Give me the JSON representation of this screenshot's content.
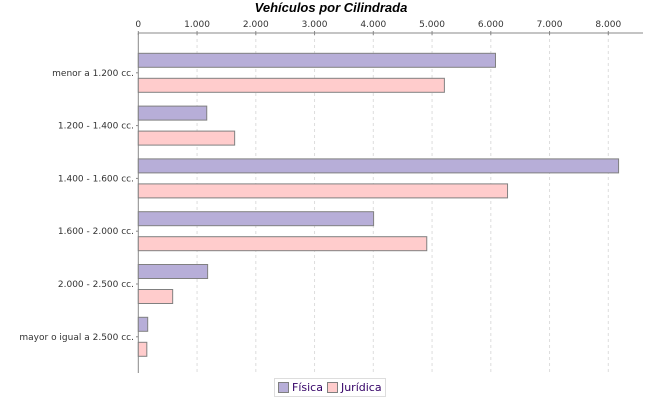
{
  "chart_data": {
    "type": "bar",
    "orientation": "horizontal",
    "title": "Vehículos por Cilindrada",
    "categories": [
      "menor a 1.200 cc.",
      "1.200 - 1.400 cc.",
      "1.400 - 1.600 cc.",
      "1.600 - 2.000 cc.",
      "2.000 - 2.500 cc.",
      "mayor o igual a 2.500 cc."
    ],
    "series": [
      {
        "name": "Física",
        "color": "#b7aed8",
        "values": [
          6080,
          1165,
          8175,
          4005,
          1180,
          160
        ]
      },
      {
        "name": "Jurídica",
        "color": "#ffcccc",
        "values": [
          5210,
          1640,
          6285,
          4910,
          585,
          145
        ]
      }
    ],
    "xlim": [
      0,
      8500
    ],
    "xticks": [
      0,
      1000,
      2000,
      3000,
      4000,
      5000,
      6000,
      7000,
      8000
    ],
    "xtick_labels": [
      "0",
      "1.000",
      "2.000",
      "3.000",
      "4.000",
      "5.000",
      "6.000",
      "7.000",
      "8.000"
    ],
    "axis_position": "top",
    "grid": true,
    "legend_position": "bottom"
  }
}
